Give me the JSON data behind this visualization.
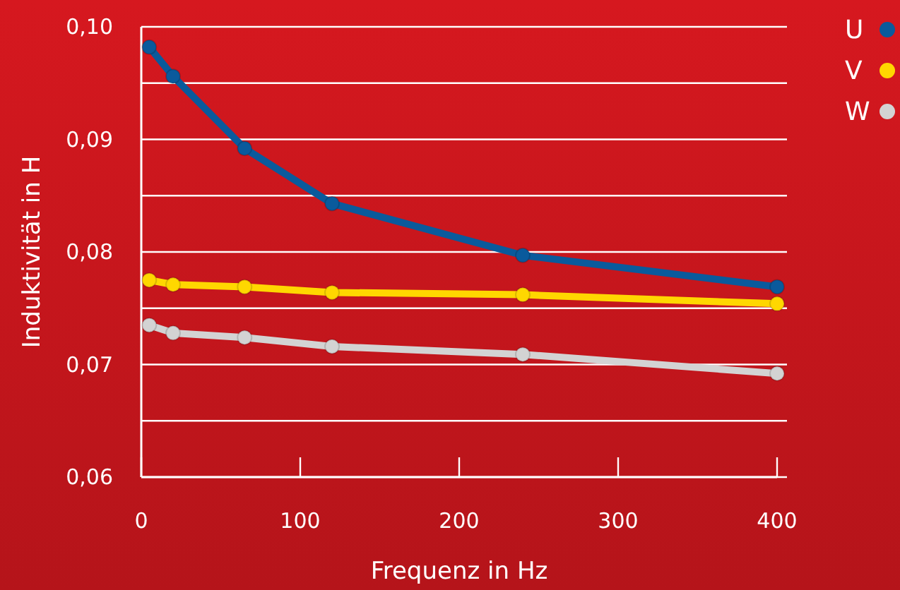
{
  "chart_data": {
    "type": "line",
    "xlabel": "Frequenz in Hz",
    "ylabel": "Induktivität in H",
    "x": [
      5,
      20,
      65,
      120,
      240,
      400
    ],
    "series": [
      {
        "name": "U",
        "color": "#0a5a9c",
        "values": [
          0.0982,
          0.0956,
          0.0892,
          0.0843,
          0.0797,
          0.0769
        ]
      },
      {
        "name": "V",
        "color": "#ffd700",
        "values": [
          0.0775,
          0.0771,
          0.0769,
          0.0764,
          0.0762,
          0.0754
        ]
      },
      {
        "name": "W",
        "color": "#d3d3d3",
        "values": [
          0.0735,
          0.0728,
          0.0724,
          0.0716,
          0.0709,
          0.0692
        ]
      }
    ],
    "xlim": [
      0,
      400
    ],
    "xticks": [
      0,
      100,
      200,
      300,
      400
    ],
    "ylim": [
      0.06,
      0.1
    ],
    "yticks": [
      {
        "value": 0.06,
        "label": "0,06"
      },
      {
        "value": 0.065,
        "label": null
      },
      {
        "value": 0.07,
        "label": "0,07"
      },
      {
        "value": 0.075,
        "label": null
      },
      {
        "value": 0.08,
        "label": "0,08"
      },
      {
        "value": 0.085,
        "label": null
      },
      {
        "value": 0.09,
        "label": "0,09"
      },
      {
        "value": 0.095,
        "label": null
      },
      {
        "value": 0.1,
        "label": "0,10"
      }
    ],
    "grid": "y",
    "legend": "top right",
    "marker": "circle",
    "line_style": "solid"
  }
}
